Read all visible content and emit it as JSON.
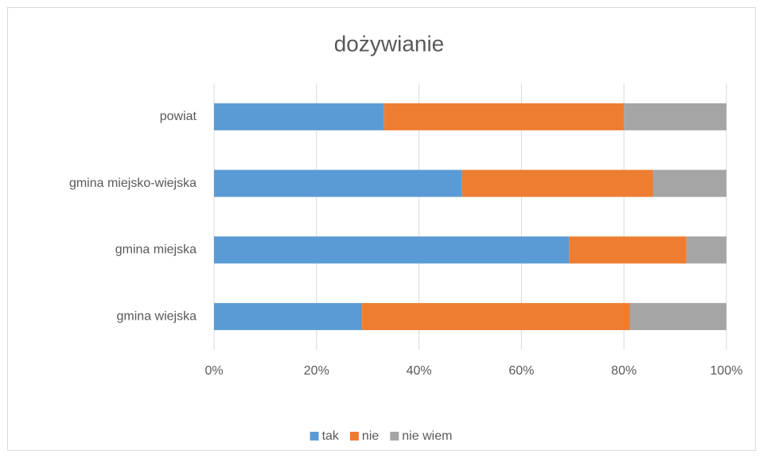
{
  "chart_data": {
    "type": "stacked_bar_horizontal",
    "title": "dożywianie",
    "categories": [
      "powiat",
      "gmina miejsko-wiejska",
      "gmina miejska",
      "gmina wiejska"
    ],
    "series": [
      {
        "name": "tak",
        "color": "#5b9bd5",
        "values": [
          33.2,
          48.4,
          69.3,
          28.9
        ]
      },
      {
        "name": "nie",
        "color": "#ed7d31",
        "values": [
          46.8,
          37.3,
          22.9,
          52.3
        ]
      },
      {
        "name": "nie wiem",
        "color": "#a5a5a5",
        "values": [
          20.0,
          14.3,
          7.8,
          18.8
        ]
      }
    ],
    "xlim": [
      0,
      100
    ],
    "xticks": [
      {
        "value": 0,
        "label": "0%"
      },
      {
        "value": 20,
        "label": "20%"
      },
      {
        "value": 40,
        "label": "40%"
      },
      {
        "value": 60,
        "label": "60%"
      },
      {
        "value": 80,
        "label": "80%"
      },
      {
        "value": 100,
        "label": "100%"
      }
    ],
    "grid": true,
    "legend": "bottom"
  }
}
